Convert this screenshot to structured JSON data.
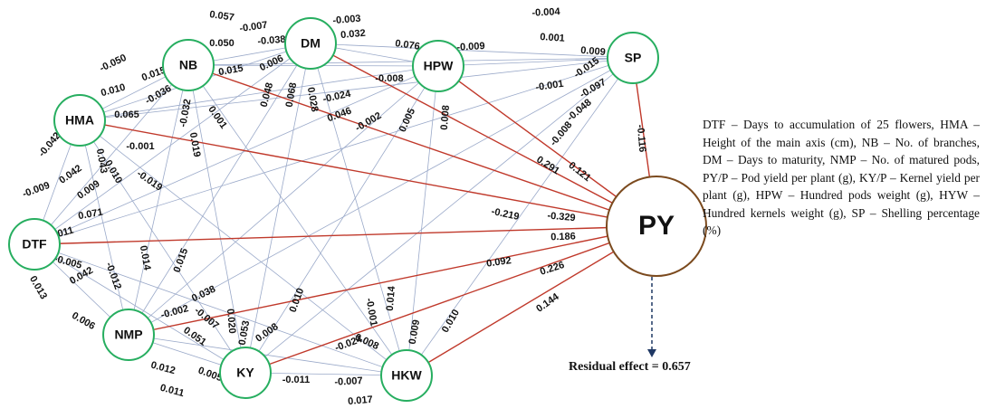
{
  "nodes": [
    "NB",
    "DM",
    "HPW",
    "SP",
    "HMA",
    "DTF",
    "NMP",
    "KY",
    "HKW",
    "PY"
  ],
  "direct_effects": [
    {
      "label": "-0.329"
    },
    {
      "label": "0.291"
    },
    {
      "label": "0.121"
    },
    {
      "label": "-0.116"
    },
    {
      "label": "-0.219"
    },
    {
      "label": "0.186"
    },
    {
      "label": "0.092"
    },
    {
      "label": "0.226"
    },
    {
      "label": "0.144"
    }
  ],
  "indirect_effects": [
    "0.057",
    "-0.007",
    "-0.003",
    "-0.004",
    "0.032",
    "0.001",
    "0.009",
    "0.050",
    "-0.038",
    "0.076",
    "-0.009",
    "-0.050",
    "0.015",
    "0.010",
    "0.015",
    "0.006",
    "-0.008",
    "-0.036",
    "-0.015",
    "-0.001",
    "-0.097",
    "-0.024",
    "0.065",
    "-0.032",
    "0.001",
    "0.048",
    "0.068",
    "0.028",
    "0.046",
    "-0.002",
    "0.005",
    "0.008",
    "-0.048",
    "-0.008",
    "0.019",
    "-0.042",
    "-0.001",
    "0.043",
    "0.010",
    "-0.019",
    "0.042",
    "-0.009",
    "0.009",
    "0.071",
    "0.011",
    "-0.005",
    "0.042",
    "-0.012",
    "0.013",
    "0.014",
    "0.015",
    "0.038",
    "0.020",
    "0.010",
    "0.053",
    "0.008",
    "-0.002",
    "-0.007",
    "0.051",
    "0.006",
    "-0.001",
    "0.014",
    "0.008",
    "-0.024",
    "0.009",
    "0.010",
    "0.012",
    "0.005",
    "-0.011",
    "-0.007",
    "0.011",
    "0.017"
  ],
  "legend": "DTF – Days to accumulation of 25 flowers, HMA – Height of the main axis (cm), NB – No. of branches, DM – Days to maturity, NMP – No. of matured pods, PY/P – Pod yield per plant (g), KY/P – Kernel yield per plant (g), HPW – Hundred pods weight (g), HYW – Hundred kernels weight (g), SP – Shelling percentage (%)",
  "residual": "Residual effect = 0.657"
}
